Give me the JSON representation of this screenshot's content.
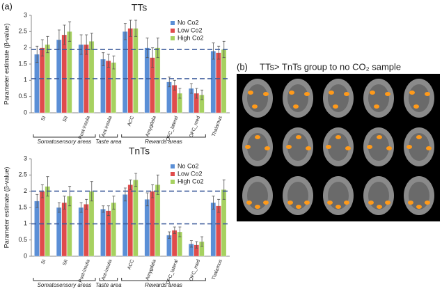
{
  "panel_a_label": "(a)",
  "panel_b": {
    "label": "(b)",
    "title": "TTs> TnTs group to no CO₂ sample"
  },
  "chart_data": [
    {
      "type": "bar",
      "title": "TTs",
      "y_label": "Parameter estimate (β-value)",
      "categories": [
        "SI",
        "SII",
        "Post-insula",
        "Ant-insula",
        "ACC",
        "Amygdala",
        "OFC_lateral",
        "OFC_med",
        "Thalamus"
      ],
      "series": [
        {
          "name": "No Co2",
          "color": "#5b8fd6",
          "values": [
            1.8,
            2.25,
            2.1,
            1.65,
            2.5,
            2.0,
            0.95,
            0.75,
            1.9
          ],
          "errors": [
            0.25,
            0.3,
            0.3,
            0.2,
            0.25,
            0.3,
            0.15,
            0.15,
            0.25
          ]
        },
        {
          "name": "Low Co2",
          "color": "#e04c4c",
          "values": [
            2.0,
            2.4,
            2.1,
            1.6,
            2.6,
            1.7,
            0.85,
            0.6,
            1.85
          ],
          "errors": [
            0.25,
            0.3,
            0.3,
            0.2,
            0.25,
            0.3,
            0.15,
            0.15,
            0.2
          ]
        },
        {
          "name": "High Co2",
          "color": "#a6d160",
          "values": [
            2.1,
            2.5,
            2.2,
            1.55,
            2.6,
            2.0,
            0.6,
            0.55,
            1.95
          ],
          "errors": [
            0.25,
            0.3,
            0.25,
            0.2,
            0.25,
            0.3,
            0.15,
            0.15,
            0.25
          ]
        }
      ],
      "ylim": [
        0,
        3
      ],
      "yticks": [
        0,
        0.5,
        1,
        1.5,
        2,
        2.5,
        3
      ],
      "reference_lines": [
        1.95,
        1.05
      ],
      "groups": [
        {
          "label": "Somatosensory areas",
          "start": 0,
          "end": 2
        },
        {
          "label": "Taste area",
          "start": 3,
          "end": 3
        },
        {
          "label": "Rewards areas",
          "start": 4,
          "end": 7
        }
      ],
      "legend": "upper right"
    },
    {
      "type": "bar",
      "title": "TnTs",
      "y_label": "Parameter estimate (β-value)",
      "categories": [
        "SI",
        "SII",
        "Post-insula",
        "Ant-insula",
        "ACC",
        "Amygdala",
        "OFC_lateral",
        "OFC_med",
        "Thalamus"
      ],
      "series": [
        {
          "name": "No Co2",
          "color": "#5b8fd6",
          "values": [
            1.7,
            1.5,
            1.5,
            1.45,
            1.9,
            1.75,
            0.65,
            0.38,
            1.65
          ],
          "errors": [
            0.2,
            0.15,
            0.15,
            0.1,
            0.2,
            0.2,
            0.1,
            0.1,
            0.2
          ]
        },
        {
          "name": "Low Co2",
          "color": "#e04c4c",
          "values": [
            2.0,
            1.65,
            1.6,
            1.4,
            2.2,
            2.0,
            0.8,
            0.35,
            1.55
          ],
          "errors": [
            0.2,
            0.2,
            0.15,
            0.15,
            0.15,
            0.2,
            0.1,
            0.1,
            0.2
          ]
        },
        {
          "name": "High Co2",
          "color": "#a6d160",
          "values": [
            2.15,
            1.85,
            2.0,
            1.65,
            2.35,
            2.2,
            0.75,
            0.45,
            2.05
          ],
          "errors": [
            0.3,
            0.3,
            0.3,
            0.2,
            0.2,
            0.3,
            0.15,
            0.15,
            0.3
          ]
        }
      ],
      "ylim": [
        0,
        3
      ],
      "yticks": [
        0,
        0.5,
        1,
        1.5,
        2,
        2.5,
        3
      ],
      "reference_lines": [
        2.0,
        1.0
      ],
      "groups": [
        {
          "label": "Somatosensory areas",
          "start": 0,
          "end": 2
        },
        {
          "label": "Taste area",
          "start": 3,
          "end": 3
        },
        {
          "label": "Rewards areas",
          "start": 4,
          "end": 7
        }
      ],
      "legend": "upper right"
    }
  ]
}
